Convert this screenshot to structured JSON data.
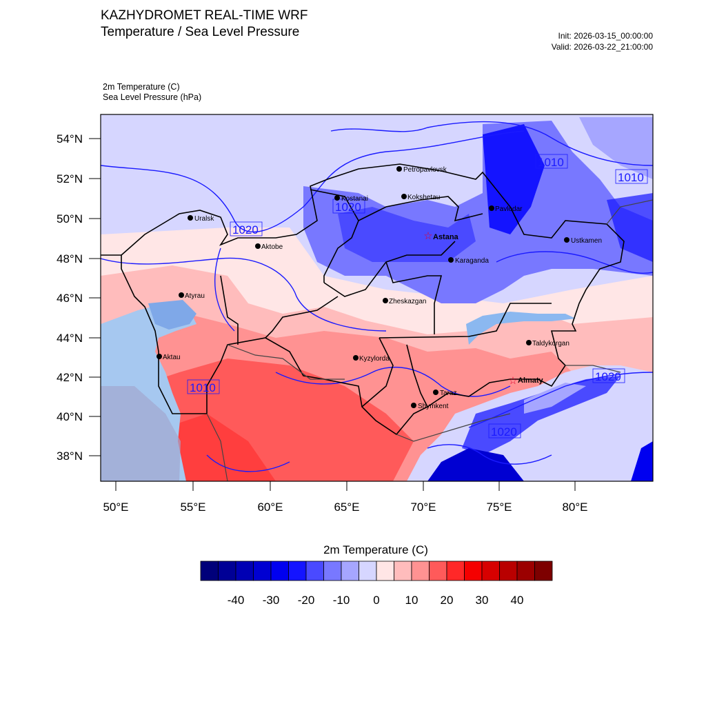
{
  "header": {
    "title_line1": "KAZHYDROMET REAL-TIME WRF",
    "title_line2": "Temperature / Sea Level Pressure",
    "init": "Init: 2026-03-15_00:00:00",
    "valid": "Valid: 2026-03-22_21:00:00"
  },
  "variables": {
    "line1": "2m Temperature   (C)",
    "line2": "Sea Level Pressure   (hPa)"
  },
  "axes": {
    "lat_labels": [
      "54°N",
      "52°N",
      "50°N",
      "48°N",
      "46°N",
      "44°N",
      "42°N",
      "40°N",
      "38°N"
    ],
    "lon_labels": [
      "50°E",
      "55°E",
      "60°E",
      "65°E",
      "70°E",
      "75°E",
      "80°E"
    ]
  },
  "cities": [
    {
      "name": "Petropavlovsk",
      "bold": false,
      "capital": false
    },
    {
      "name": "Kostanai",
      "bold": false,
      "capital": false
    },
    {
      "name": "Kokshetau",
      "bold": false,
      "capital": false
    },
    {
      "name": "Pavlodar",
      "bold": false,
      "capital": false
    },
    {
      "name": "Uralsk",
      "bold": false,
      "capital": false
    },
    {
      "name": "Aktobe",
      "bold": false,
      "capital": false
    },
    {
      "name": "Astana",
      "bold": true,
      "capital": true
    },
    {
      "name": "Ustkamen",
      "bold": false,
      "capital": false
    },
    {
      "name": "Karaganda",
      "bold": false,
      "capital": false
    },
    {
      "name": "Atyrau",
      "bold": false,
      "capital": false
    },
    {
      "name": "Zheskazgan",
      "bold": false,
      "capital": false
    },
    {
      "name": "Taldykorgan",
      "bold": false,
      "capital": false
    },
    {
      "name": "Aktau",
      "bold": false,
      "capital": false
    },
    {
      "name": "Kyzylorda",
      "bold": false,
      "capital": false
    },
    {
      "name": "Almaty",
      "bold": true,
      "capital": true
    },
    {
      "name": "Taraz",
      "bold": false,
      "capital": false
    },
    {
      "name": "Shymkent",
      "bold": false,
      "capital": false
    }
  ],
  "isobar_labels": [
    "1010",
    "1010",
    "1020",
    "1020",
    "1010",
    "1020",
    "1020"
  ],
  "colorbar": {
    "title": "2m Temperature  (C)",
    "tick_labels": [
      "-40",
      "-30",
      "-20",
      "-10",
      "0",
      "10",
      "20",
      "30",
      "40"
    ],
    "colors": [
      "#00007a",
      "#000096",
      "#0000b4",
      "#0000d2",
      "#0000f0",
      "#1414ff",
      "#4a4aff",
      "#7878ff",
      "#a6a6ff",
      "#d6d6ff",
      "#ffe6e6",
      "#ffbcbc",
      "#ff9292",
      "#ff5a5a",
      "#ff2828",
      "#f50000",
      "#d70000",
      "#b90000",
      "#9b0000",
      "#7d0000"
    ]
  }
}
